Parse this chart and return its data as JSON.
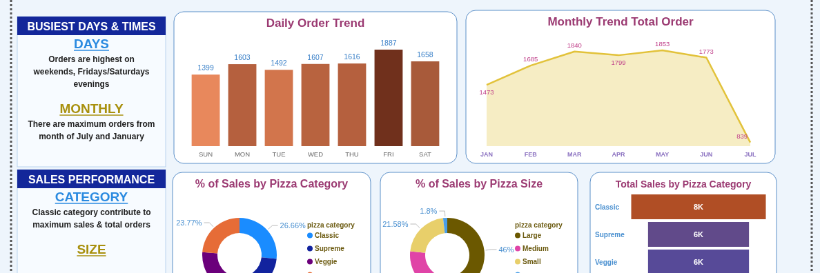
{
  "chart_data": [
    {
      "type": "other",
      "title": "BUSIEST DAYS & TIMES",
      "annotations": [
        "DAYS",
        "Orders are highest on weekends, Fridays/Saturdays evenings",
        "MONTHLY",
        "There are maximum orders from month of July and January"
      ]
    },
    {
      "type": "bar",
      "title": "Daily Order Trend",
      "categories": [
        "SUN",
        "MON",
        "TUE",
        "WED",
        "THU",
        "FRI",
        "SAT"
      ],
      "values": [
        1399,
        1603,
        1492,
        1607,
        1616,
        1887,
        1658
      ],
      "colors": [
        "#e8885c",
        "#b5603e",
        "#d2754c",
        "#b8633f",
        "#b5603e",
        "#70301c",
        "#a85a3a"
      ],
      "data_labels": true,
      "relative": false
    },
    {
      "type": "area",
      "title": "Monthly Trend Total Order",
      "categories": [
        "JAN",
        "FEB",
        "MAR",
        "APR",
        "MAY",
        "JUN",
        "JUL"
      ],
      "series": [
        {
          "color": "#e2c23a",
          "values": [
            1473,
            1685,
            1840,
            1799,
            1853,
            1773,
            839
          ]
        }
      ],
      "data_labels": true
    },
    {
      "type": "other",
      "title": "SALES PERFORMANCE",
      "annotations": [
        "CATEGORY",
        "Classic category contribute to maximum sales & total orders",
        "SIZE"
      ]
    },
    {
      "type": "donut",
      "title": "% of Sales by Pizza Category",
      "legend_title": "pizza category",
      "categories": [
        "Classic",
        "Supreme",
        "Veggie",
        null
      ],
      "values": [
        26.66,
        25.0,
        24.57,
        23.77
      ],
      "colors": [
        "#1a8cff",
        "#12239e",
        "#6b007b",
        "#e66c37"
      ],
      "value_labels": [
        "26.66%",
        null,
        null,
        "23.77%"
      ],
      "legend": "right"
    },
    {
      "type": "donut",
      "title": "% of Sales by Pizza Size",
      "legend_title": "pizza category",
      "categories": [
        "Large",
        "Medium",
        "Small",
        null
      ],
      "values": [
        46,
        30.62,
        21.58,
        1.8
      ],
      "colors": [
        "#6b5800",
        "#e044a7",
        "#e8cf6a",
        "#4a9ee8"
      ],
      "value_labels": [
        "46%",
        null,
        "21.58%",
        "1.8%"
      ],
      "legend": "right"
    },
    {
      "type": "other",
      "title": "Total Sales by Pizza Category",
      "categories": [
        "Classic",
        "Supreme",
        "Veggie"
      ],
      "values": [
        8000,
        6000,
        6000
      ],
      "value_labels": [
        "8K",
        "6K",
        "6K"
      ],
      "colors": [
        "#b04e25",
        "#614a8a",
        "#574a98"
      ]
    }
  ]
}
